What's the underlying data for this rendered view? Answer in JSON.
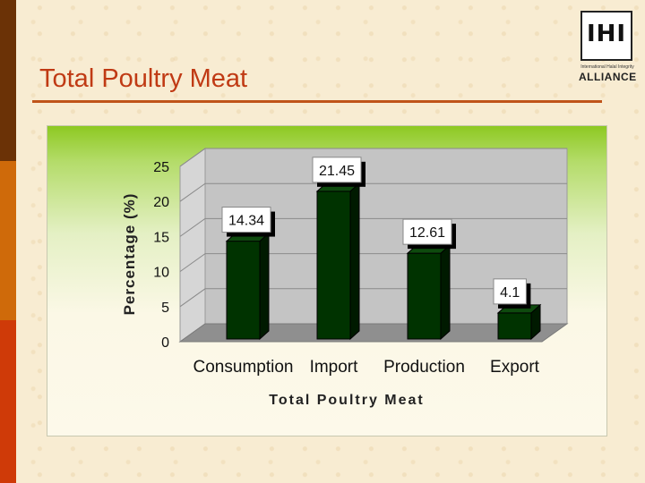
{
  "slide": {
    "title": "Total Poultry Meat"
  },
  "logo": {
    "letters": "IHI",
    "small_text": "International Halal Integrity",
    "word": "ALLIANCE"
  },
  "colors": {
    "title": "#c03a14",
    "bar_front": "#003300",
    "bar_side": "#001a00",
    "bar_top": "#0e4a0e",
    "panel_top": "#8ec922"
  },
  "chart_data": {
    "type": "bar",
    "categories": [
      "Consumption",
      "Import",
      "Production",
      "Export"
    ],
    "values": [
      14.34,
      21.45,
      12.61,
      4.1
    ],
    "data_labels": [
      "14.34",
      "21.45",
      "12.61",
      "4.1"
    ],
    "title": "",
    "xlabel": "Total Poultry Meat",
    "ylabel": "Percentage (%)",
    "ylim": [
      0,
      25
    ],
    "yticks": [
      0,
      5,
      10,
      15,
      20,
      25
    ],
    "three_d": true,
    "grid": true,
    "legend": "none"
  }
}
